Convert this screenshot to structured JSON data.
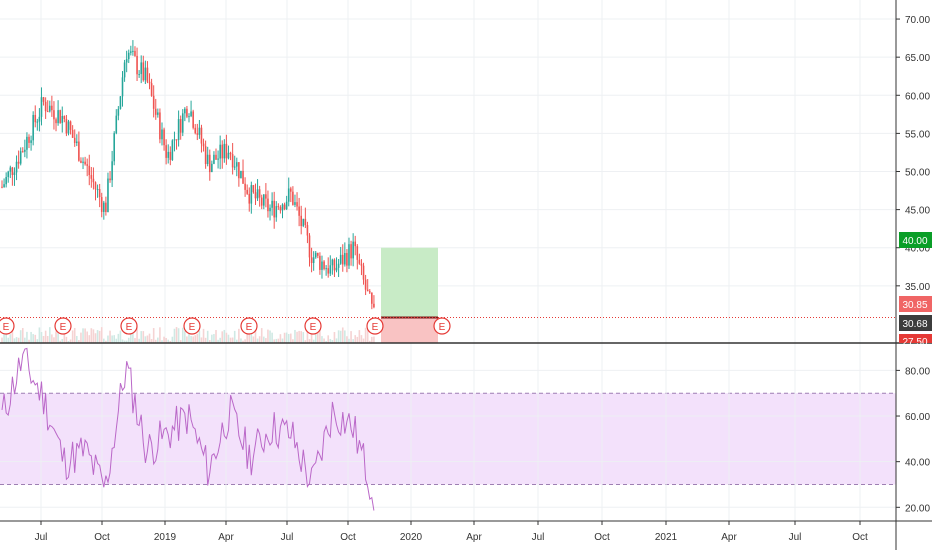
{
  "colors": {
    "up": "#26a69a",
    "down": "#ef5350",
    "rsi_line": "#ba68c8",
    "rsi_band": "#f3e1fb",
    "target_zone": "#c8ebc6",
    "stop_zone": "#f9c3c3",
    "target_badge": "#0a9e27",
    "stop_badge": "#e53935",
    "price_badge": "#f06565",
    "last_badge": "#3c3c3c"
  },
  "price_axis": {
    "ticks": [
      "70.00",
      "65.00",
      "60.00",
      "55.00",
      "50.00",
      "45.00",
      "40.00",
      "35.00"
    ],
    "tick_values": [
      70,
      65,
      60,
      55,
      50,
      45,
      40,
      35
    ],
    "range": [
      27.5,
      72.5
    ],
    "badges": {
      "target": "40.00",
      "current": "30.85",
      "last": "30.68",
      "stop": "27.50"
    }
  },
  "rsi_axis": {
    "ticks": [
      "80.00",
      "60.00",
      "40.00",
      "20.00"
    ],
    "tick_values": [
      80,
      60,
      40,
      20
    ],
    "range": [
      14,
      92
    ],
    "upper_band": 70,
    "lower_band": 30
  },
  "time_axis": {
    "labels": [
      "Jul",
      "Oct",
      "2019",
      "Apr",
      "Jul",
      "Oct",
      "2020",
      "Apr",
      "Jul",
      "Oct",
      "2021",
      "Apr",
      "Jul",
      "Oct"
    ]
  },
  "earnings_markers": [
    "E",
    "E",
    "E",
    "E",
    "E",
    "E",
    "E",
    "E"
  ],
  "position": {
    "entry": 30.85,
    "target": 40.0,
    "stop": 27.5
  },
  "chart_data": [
    {
      "type": "line",
      "title": "",
      "xlabel": "",
      "ylabel": "",
      "note": "candlestick price panel (values approximated from chart)",
      "x": [
        "2018-05",
        "2018-06",
        "2018-07",
        "2018-08",
        "2018-09",
        "2018-10",
        "2018-11",
        "2018-12",
        "2019-01",
        "2019-02",
        "2019-03",
        "2019-04",
        "2019-05",
        "2019-06",
        "2019-07",
        "2019-08",
        "2019-09",
        "2019-10",
        "2019-11"
      ],
      "series": [
        {
          "name": "",
          "values": [
            48,
            53,
            59,
            57,
            51,
            45,
            66,
            62,
            52,
            59,
            51,
            53,
            47,
            45,
            47,
            39,
            37,
            40,
            30.85
          ]
        }
      ],
      "ylim": [
        27.5,
        72.5
      ]
    },
    {
      "type": "line",
      "title": "",
      "xlabel": "",
      "ylabel": "",
      "note": "RSI oscillator panel (values approximated from chart)",
      "x": [
        "2018-05",
        "2018-06",
        "2018-07",
        "2018-08",
        "2018-09",
        "2018-10",
        "2018-11",
        "2018-12",
        "2019-01",
        "2019-02",
        "2019-03",
        "2019-04",
        "2019-05",
        "2019-06",
        "2019-07",
        "2019-08",
        "2019-09",
        "2019-10",
        "2019-11"
      ],
      "series": [
        {
          "name": "",
          "values": [
            60,
            85,
            68,
            40,
            45,
            28,
            82,
            45,
            52,
            60,
            36,
            62,
            42,
            55,
            52,
            30,
            62,
            55,
            26
          ]
        }
      ],
      "ylim": [
        14,
        92
      ],
      "hlines": [
        70,
        30
      ]
    }
  ]
}
